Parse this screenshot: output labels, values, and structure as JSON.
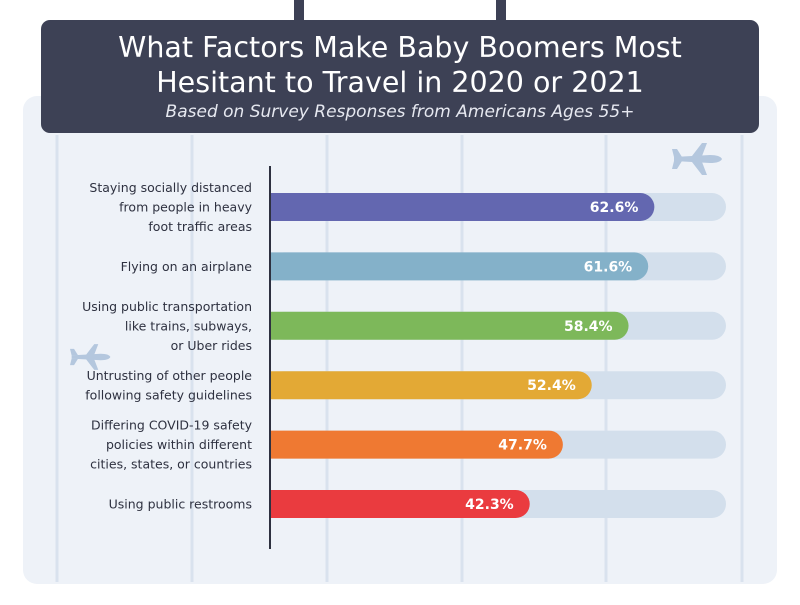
{
  "title": "What Factors Make Baby Boomers Most\nHesitant to Travel in 2020 or 2021",
  "subtitle": "Based on Survey Responses from Americans Ages 55+",
  "colors": {
    "header": "#3d4155",
    "board": "#eef2f8",
    "track": "#d3dfec",
    "gridline": "#d9e2ee",
    "axis": "#2e3140",
    "plane": "#b4c7de"
  },
  "chart_data": {
    "type": "bar",
    "orientation": "horizontal",
    "title": "What Factors Make Baby Boomers Most Hesitant to Travel in 2020 or 2021",
    "subtitle": "Based on Survey Responses from Americans Ages 55+",
    "xlim": [
      0,
      100
    ],
    "grid": true,
    "legend": "none",
    "categories": [
      "Staying socially distanced from people in heavy foot traffic areas",
      "Flying on an airplane",
      "Using public transportation like trains, subways, or Uber rides",
      "Untrusting of other people following safety guidelines",
      "Differing COVID-19 safety policies within different cities, states, or countries",
      "Using public restrooms"
    ],
    "category_lines": [
      [
        "Staying socially distanced",
        "from people in heavy",
        "foot traffic areas"
      ],
      [
        "Flying on an airplane"
      ],
      [
        "Using public transportation",
        "like trains, subways,",
        "or Uber rides"
      ],
      [
        "Untrusting of other people",
        "following safety guidelines"
      ],
      [
        "Differing COVID-19 safety",
        "policies within different",
        "cities, states, or countries"
      ],
      [
        "Using public restrooms"
      ]
    ],
    "values": [
      62.6,
      61.6,
      58.4,
      52.4,
      47.7,
      42.3
    ],
    "value_labels": [
      "62.6%",
      "61.6%",
      "58.4%",
      "52.4%",
      "47.7%",
      "42.3%"
    ],
    "bar_colors": [
      "#6367b0",
      "#84b1c9",
      "#7db85a",
      "#e3a935",
      "#ef7932",
      "#ea3b3f"
    ]
  }
}
